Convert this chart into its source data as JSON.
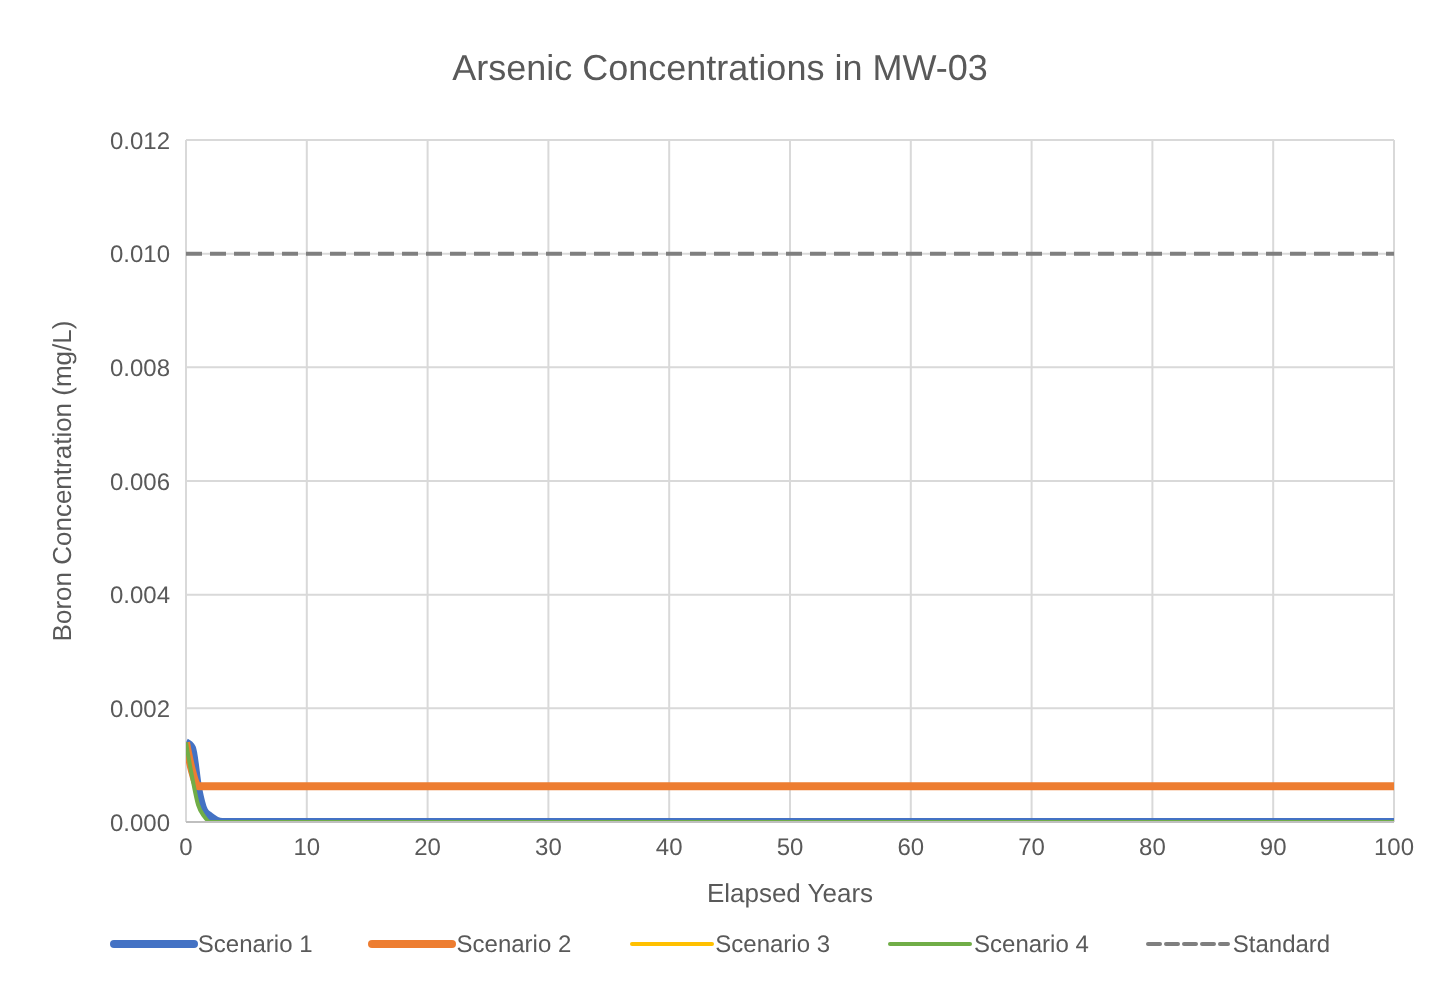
{
  "chart_data": {
    "type": "line",
    "title": "Arsenic Concentrations in MW-03",
    "xlabel": "Elapsed Years",
    "ylabel": "Boron Concentration (mg/L)",
    "x": [
      0,
      0.5,
      1,
      1.5,
      2,
      3,
      4,
      5,
      10,
      20,
      30,
      40,
      50,
      60,
      70,
      80,
      90,
      100
    ],
    "series": [
      {
        "name": "Scenario 1",
        "color": "#4472c4",
        "values": [
          0.0014,
          0.0013,
          0.0006,
          0.0002,
          0.0001,
          0,
          0,
          0,
          0,
          0,
          0,
          0,
          0,
          0,
          0,
          0,
          0,
          0
        ]
      },
      {
        "name": "Scenario 2",
        "color": "#ed7d31",
        "values": [
          0.0014,
          0.0009,
          0.00063,
          0.00063,
          0.00063,
          0.00063,
          0.00063,
          0.00063,
          0.00063,
          0.00063,
          0.00063,
          0.00063,
          0.00063,
          0.00063,
          0.00063,
          0.00063,
          0.00063,
          0.00063
        ]
      },
      {
        "name": "Scenario 3",
        "color": "#ffc000",
        "values": [
          null,
          null,
          null,
          null,
          null,
          null,
          null,
          null,
          null,
          null,
          null,
          null,
          null,
          null,
          null,
          null,
          null,
          null
        ]
      },
      {
        "name": "Scenario 4",
        "color": "#70ad47",
        "values": [
          0.0014,
          0.0008,
          0.0003,
          0.0001,
          0,
          0,
          0,
          0,
          0,
          0,
          0,
          0,
          0,
          0,
          0,
          0,
          0,
          0
        ]
      },
      {
        "name": "Standard",
        "color": "#7f7f7f",
        "line_style": "dashed",
        "values": [
          0.01,
          0.01,
          0.01,
          0.01,
          0.01,
          0.01,
          0.01,
          0.01,
          0.01,
          0.01,
          0.01,
          0.01,
          0.01,
          0.01,
          0.01,
          0.01,
          0.01,
          0.01
        ]
      }
    ],
    "xlim": [
      0,
      100
    ],
    "xticks": [
      0,
      10,
      20,
      30,
      40,
      50,
      60,
      70,
      80,
      90,
      100
    ],
    "ylim": [
      0,
      0.012
    ],
    "yticks": [
      {
        "value": 0,
        "label": "0.000"
      },
      {
        "value": 0.002,
        "label": "0.002"
      },
      {
        "value": 0.004,
        "label": "0.004"
      },
      {
        "value": 0.006,
        "label": "0.006"
      },
      {
        "value": 0.008,
        "label": "0.008"
      },
      {
        "value": 0.01,
        "label": "0.010"
      },
      {
        "value": 0.012,
        "label": "0.012"
      }
    ],
    "grid": true,
    "legend": "bottom",
    "marker": "none",
    "line_style": "solid"
  }
}
